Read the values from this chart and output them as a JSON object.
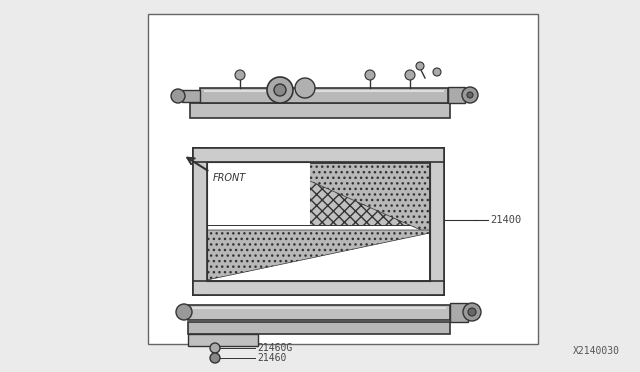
{
  "bg_color": "#ebebeb",
  "box_color": "#ffffff",
  "box_border_color": "#666666",
  "diagram_id": "X2140030",
  "label_21400": "21400",
  "label_21460G": "21460G",
  "label_21460": "21460",
  "label_front": "FRONT",
  "line_color": "#333333",
  "part_label_color": "#444444"
}
